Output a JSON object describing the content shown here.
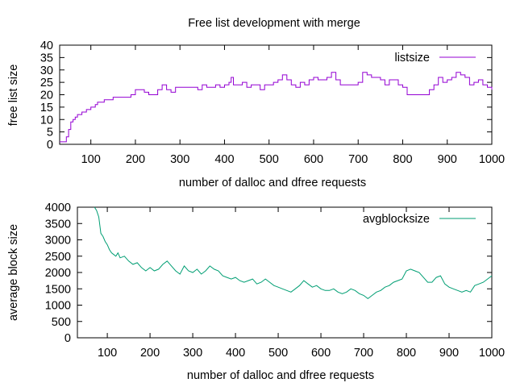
{
  "figure_title": "Free list development with merge",
  "chart_data": [
    {
      "type": "line",
      "xlabel": "number of dalloc and dfree requests",
      "ylabel": "free list size",
      "xlim": [
        30,
        1000
      ],
      "ylim": [
        0,
        40
      ],
      "x_ticks": [
        100,
        200,
        300,
        400,
        500,
        600,
        700,
        800,
        900,
        1000
      ],
      "y_ticks": [
        0,
        5,
        10,
        15,
        20,
        25,
        30,
        35,
        40
      ],
      "grid": false,
      "legend_position": "top-right",
      "series": [
        {
          "name": "listsize",
          "color": "#9400d3",
          "step": true,
          "x": [
            30,
            40,
            45,
            50,
            55,
            60,
            65,
            70,
            75,
            80,
            90,
            100,
            110,
            115,
            120,
            130,
            140,
            150,
            165,
            180,
            190,
            200,
            210,
            220,
            230,
            240,
            250,
            260,
            270,
            280,
            290,
            300,
            310,
            320,
            330,
            340,
            350,
            360,
            370,
            380,
            390,
            400,
            410,
            415,
            420,
            430,
            440,
            450,
            460,
            470,
            480,
            490,
            500,
            510,
            520,
            530,
            540,
            550,
            560,
            570,
            580,
            590,
            600,
            610,
            620,
            630,
            640,
            650,
            660,
            670,
            680,
            690,
            700,
            710,
            715,
            720,
            730,
            740,
            750,
            760,
            770,
            780,
            790,
            800,
            810,
            820,
            830,
            840,
            850,
            860,
            870,
            880,
            890,
            900,
            910,
            920,
            930,
            940,
            950,
            960,
            970,
            980,
            990,
            1000
          ],
          "y": [
            1,
            1,
            3,
            6,
            9,
            10,
            11,
            12,
            12,
            13,
            14,
            15,
            16,
            17,
            17,
            18,
            18,
            19,
            19,
            19,
            20,
            22,
            22,
            21,
            20,
            20,
            22,
            24,
            22,
            21,
            23,
            23,
            23,
            23,
            23,
            22,
            24,
            23,
            23,
            24,
            23,
            24,
            25,
            27,
            24,
            24,
            25,
            23,
            24,
            24,
            22,
            24,
            24,
            25,
            26,
            28,
            26,
            24,
            23,
            25,
            24,
            26,
            27,
            26,
            26,
            27,
            29,
            26,
            24,
            24,
            24,
            24,
            25,
            29,
            29,
            28,
            27,
            27,
            26,
            24,
            26,
            26,
            24,
            23,
            20,
            20,
            20,
            20,
            20,
            22,
            24,
            27,
            25,
            26,
            27,
            29,
            28,
            27,
            24,
            25,
            26,
            24,
            23,
            22
          ]
        }
      ]
    },
    {
      "type": "line",
      "xlabel": "number of dalloc and dfree requests",
      "ylabel": "average block size",
      "xlim": [
        30,
        1000
      ],
      "ylim": [
        0,
        4000
      ],
      "x_ticks": [
        100,
        200,
        300,
        400,
        500,
        600,
        700,
        800,
        900,
        1000
      ],
      "y_ticks": [
        0,
        500,
        1000,
        1500,
        2000,
        2500,
        3000,
        3500,
        4000
      ],
      "grid": false,
      "legend_position": "top-right",
      "series": [
        {
          "name": "avgblocksize",
          "color": "#009e73",
          "x": [
            70,
            75,
            80,
            85,
            90,
            95,
            100,
            105,
            110,
            115,
            120,
            125,
            130,
            140,
            150,
            160,
            170,
            180,
            190,
            200,
            210,
            220,
            230,
            240,
            250,
            260,
            270,
            280,
            290,
            300,
            310,
            320,
            330,
            340,
            350,
            360,
            370,
            380,
            390,
            400,
            410,
            420,
            430,
            440,
            450,
            460,
            470,
            480,
            490,
            500,
            510,
            520,
            530,
            540,
            550,
            560,
            570,
            580,
            590,
            600,
            610,
            620,
            630,
            640,
            650,
            660,
            670,
            680,
            690,
            700,
            710,
            720,
            730,
            740,
            750,
            760,
            770,
            780,
            790,
            800,
            810,
            820,
            830,
            840,
            850,
            860,
            870,
            880,
            890,
            900,
            910,
            920,
            930,
            940,
            950,
            960,
            970,
            980,
            990,
            1000
          ],
          "y": [
            4000,
            3900,
            3700,
            3200,
            3100,
            2950,
            2850,
            2700,
            2600,
            2550,
            2500,
            2600,
            2450,
            2500,
            2350,
            2250,
            2300,
            2150,
            2050,
            2150,
            2050,
            2100,
            2250,
            2350,
            2200,
            2050,
            1950,
            2200,
            2050,
            2000,
            2100,
            1950,
            2050,
            2200,
            2100,
            2050,
            1900,
            1850,
            1800,
            1850,
            1750,
            1700,
            1750,
            1800,
            1650,
            1700,
            1800,
            1700,
            1600,
            1550,
            1500,
            1450,
            1400,
            1500,
            1600,
            1750,
            1650,
            1550,
            1600,
            1500,
            1450,
            1450,
            1500,
            1400,
            1350,
            1400,
            1500,
            1450,
            1350,
            1300,
            1200,
            1300,
            1400,
            1450,
            1550,
            1600,
            1700,
            1750,
            1800,
            2050,
            2100,
            2050,
            2000,
            1850,
            1700,
            1700,
            1850,
            1900,
            1650,
            1550,
            1500,
            1450,
            1400,
            1450,
            1400,
            1600,
            1650,
            1700,
            1800,
            1900
          ]
        }
      ]
    }
  ]
}
